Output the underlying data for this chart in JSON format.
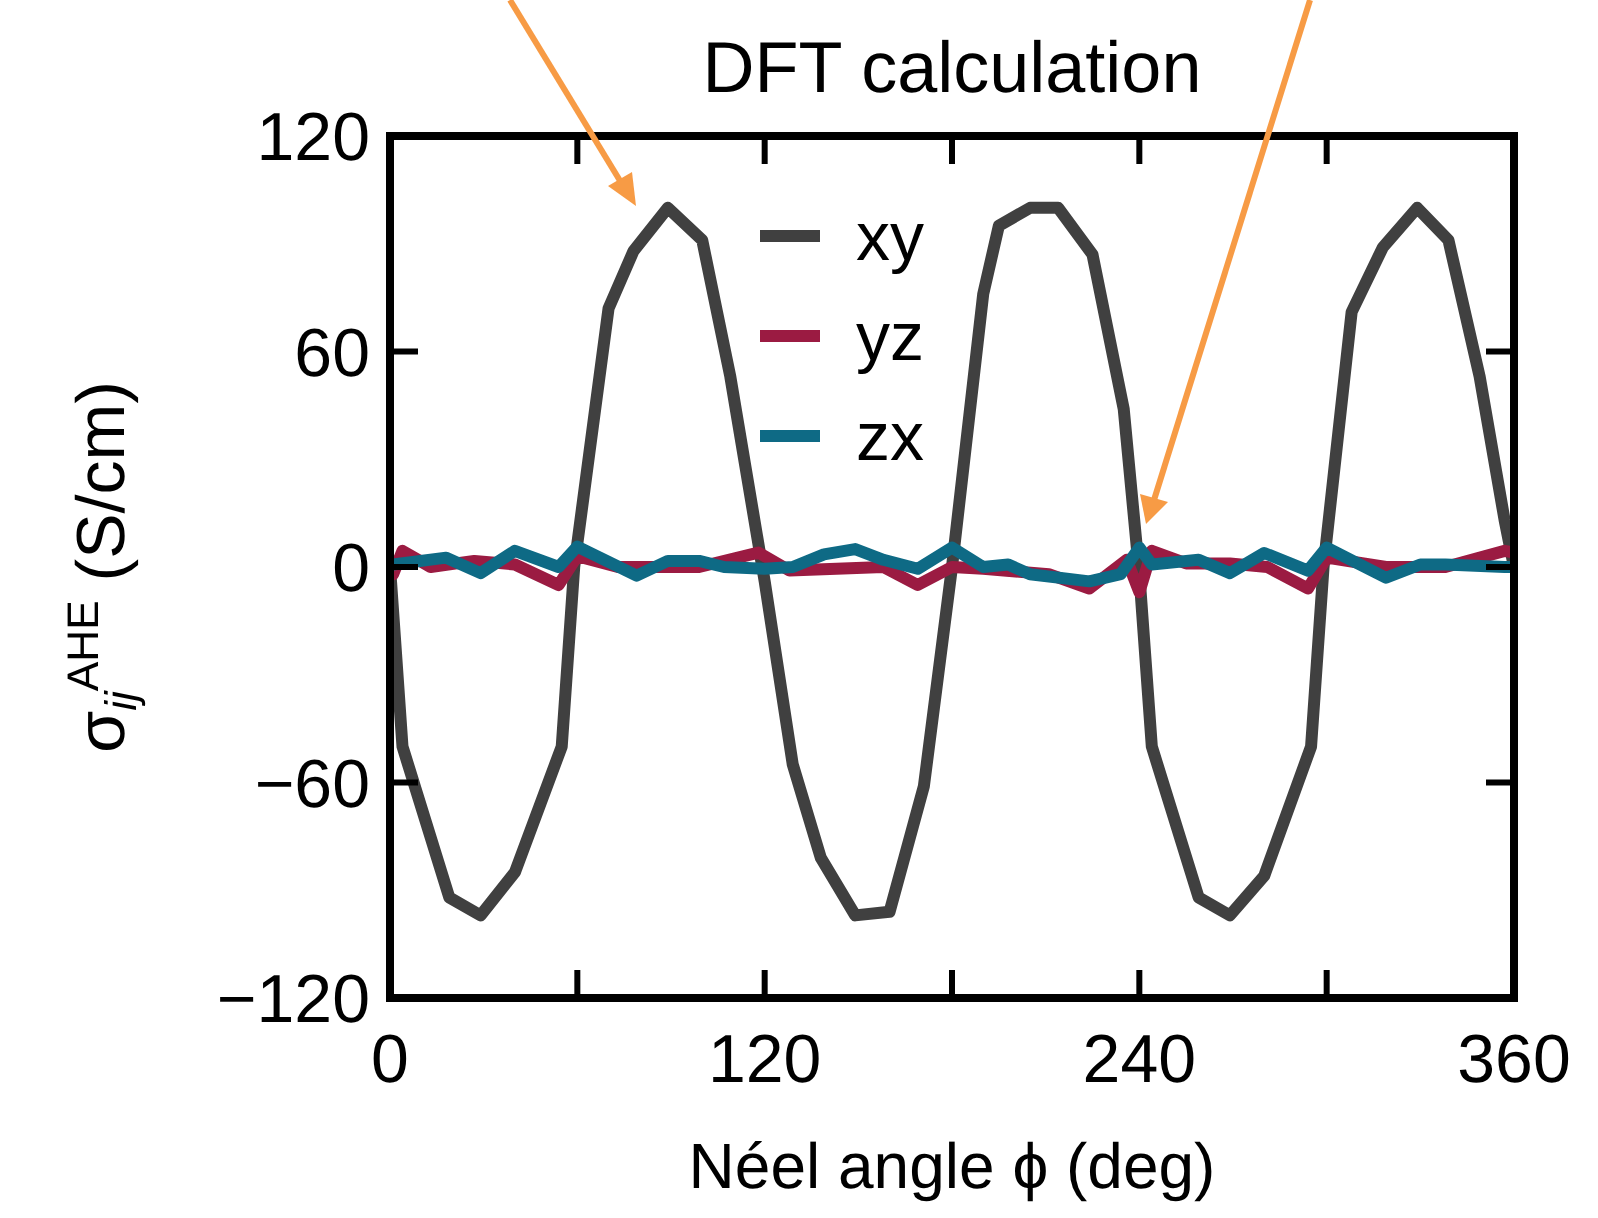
{
  "chart_data": {
    "type": "line",
    "title": "DFT calculation",
    "xlabel": "Néel angle ϕ (deg)",
    "ylabel": "σ$_{ij}$$^{AHE}$ (S/cm)",
    "xlim": [
      0,
      360
    ],
    "xticks": [
      0,
      {
        "value": 60,
        "label": null
      },
      120,
      {
        "value": 180,
        "label": null
      },
      240,
      {
        "value": 300,
        "label": null
      },
      360
    ],
    "ylim": [
      -120,
      120
    ],
    "yticks": [
      -120,
      -60,
      0,
      60,
      120
    ],
    "grid": false,
    "legend": "top",
    "marker": "none",
    "line_style": "solid",
    "series": [
      {
        "name": "xy",
        "color": "#404040",
        "x": [
          0,
          4,
          19,
          29,
          40,
          55,
          59,
          70,
          78,
          89,
          100,
          109,
          120,
          129,
          138,
          149,
          160,
          171,
          180,
          190,
          195,
          205,
          214,
          225,
          235,
          240,
          244,
          259,
          269,
          280,
          295,
          299,
          308,
          318,
          329,
          339,
          349,
          357,
          360
        ],
        "values": [
          0,
          -50,
          -92,
          -97,
          -85,
          -50,
          0,
          72,
          88,
          100,
          91,
          53,
          -4,
          -55,
          -81,
          -97,
          -96,
          -61,
          0,
          76,
          95,
          100,
          100,
          87,
          44,
          -2,
          -50,
          -92,
          -97,
          -86,
          -50,
          0,
          71,
          89,
          100,
          91,
          53,
          13,
          0
        ]
      },
      {
        "name": "yz",
        "color": "#9b1b42",
        "x": [
          0,
          1,
          4,
          13,
          27,
          40,
          54,
          60,
          73,
          99,
          118,
          128,
          158,
          169,
          180,
          190,
          211,
          224,
          236,
          240,
          244,
          255,
          269,
          281,
          294,
          300,
          319,
          338,
          357,
          360
        ],
        "values": [
          0,
          -2,
          4.5,
          0,
          1.7,
          0.7,
          -5,
          3,
          0,
          0,
          4,
          -1,
          0,
          -5,
          0,
          -0.5,
          -2,
          -6,
          2,
          -7,
          4.5,
          1,
          1,
          0,
          -6,
          2.6,
          0,
          0,
          4.5,
          4
        ]
      },
      {
        "name": "zx",
        "color": "#0e6a85",
        "x": [
          0,
          1,
          18,
          29,
          40,
          54,
          60,
          79,
          89,
          99,
          107,
          120,
          129,
          139,
          149,
          158,
          169,
          180,
          190,
          198,
          205,
          224,
          234,
          240,
          244,
          259,
          269,
          280,
          294,
          300,
          319,
          330,
          338,
          357,
          360
        ],
        "values": [
          1,
          0.7,
          2.6,
          -1.7,
          4.5,
          0,
          5.7,
          -2.4,
          1.7,
          1.7,
          0,
          -0.5,
          0,
          3.5,
          5,
          2,
          -0.5,
          5.4,
          0,
          0.7,
          -2,
          -4,
          -2,
          5.4,
          0.7,
          2,
          -1.7,
          3.9,
          -1,
          5.4,
          -3,
          0.7,
          0.7,
          0,
          0
        ]
      }
    ]
  }
}
